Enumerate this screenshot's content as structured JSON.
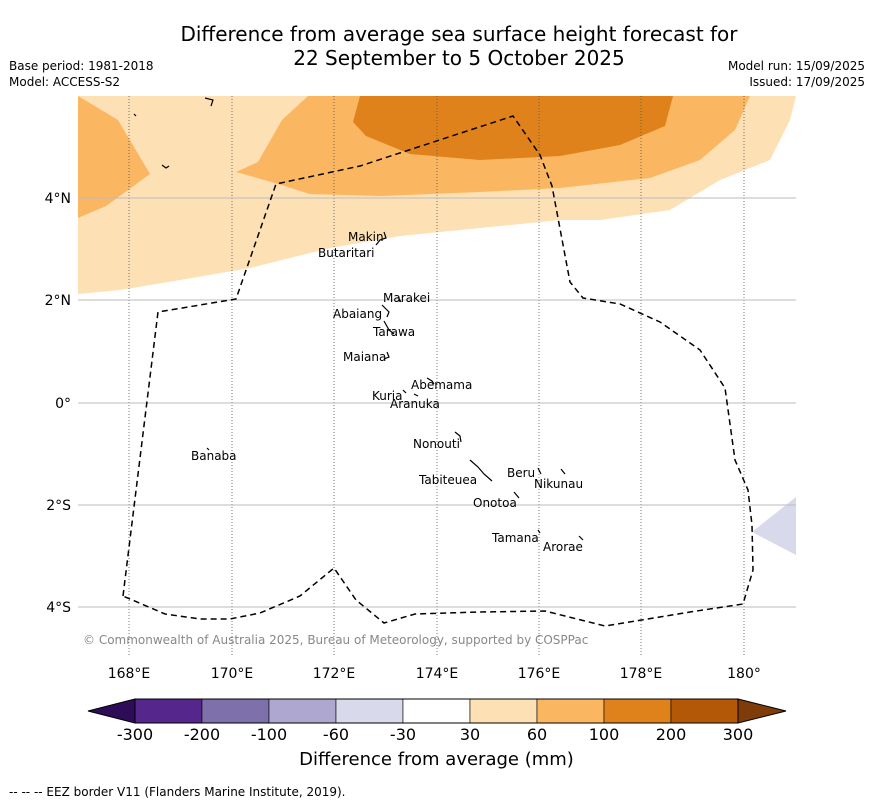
{
  "title_line1": "Difference from average sea surface height forecast for",
  "title_line2": "22 September to 5 October 2025",
  "meta_left": [
    "Base period: 1981-2018",
    "Model: ACCESS-S2"
  ],
  "meta_right": [
    "Model run: 15/09/2025",
    "Issued: 17/09/2025"
  ],
  "credit": "© Commonwealth of Australia 2025, Bureau of Meteorology, supported by COSPPac",
  "longitude_labels": [
    "168°E",
    "170°E",
    "172°E",
    "174°E",
    "176°E",
    "178°E",
    "180°"
  ],
  "latitude_labels": [
    "4°N",
    "2°N",
    "0°",
    "2°S",
    "4°S"
  ],
  "islands": [
    "Makin",
    "Butaritari",
    "Marakei",
    "Abaiang",
    "Tarawa",
    "Maiana",
    "Abemama",
    "Kuria",
    "Aranuka",
    "Banaba",
    "Nonouti",
    "Beru",
    "Nikunau",
    "Tabiteuea",
    "Onotoa",
    "Tamana",
    "Arorae"
  ],
  "colorbar": {
    "title": "Difference from average (mm)",
    "ticks": [
      "-300",
      "-200",
      "-100",
      "-60",
      "-30",
      "30",
      "60",
      "100",
      "200",
      "300"
    ],
    "colors": [
      "#2e0c57",
      "#55268c",
      "#7e70aa",
      "#aea8d1",
      "#d8d9eb",
      "#ffffff",
      "#fee0b5",
      "#fbb661",
      "#e0821c",
      "#b35806",
      "#7f3b08"
    ]
  },
  "footer": "-- -- -- EEZ border V11 (Flanders Marine Institute, 2019)."
}
